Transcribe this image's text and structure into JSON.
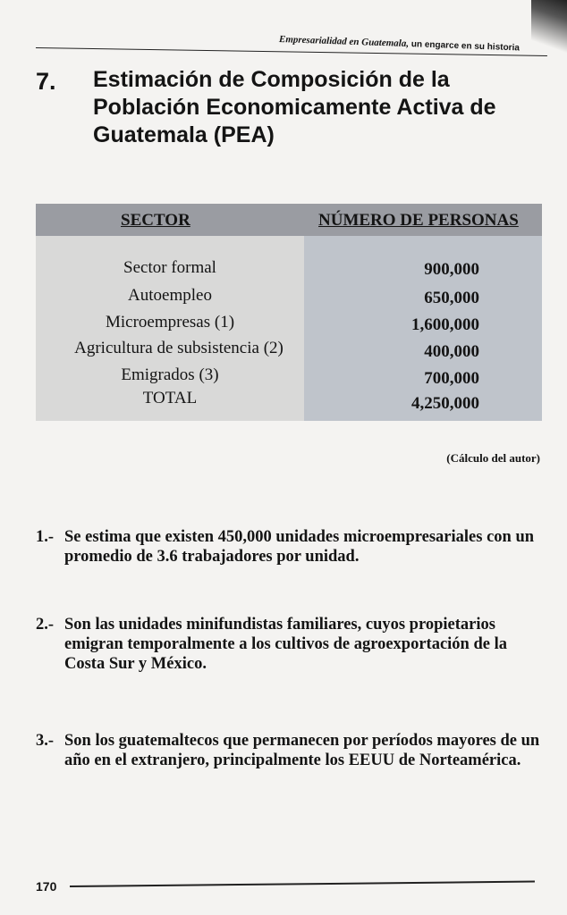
{
  "running_header": {
    "italic": "Empresarialidad en Guatemala,",
    "rest": "un engarce en su historia"
  },
  "section": {
    "number": "7.",
    "title": "Estimación de Composición de la Población Economicamente Activa de Guatemala (PEA)"
  },
  "table": {
    "headers": [
      "SECTOR",
      "NÚMERO DE PERSONAS"
    ],
    "rows": [
      {
        "sector": "Sector formal",
        "value": "900,000"
      },
      {
        "sector": "Autoempleo",
        "value": "650,000"
      },
      {
        "sector": "Microempresas (1)",
        "value": "1,600,000"
      },
      {
        "sector": "Agricultura de subsistencia (2)",
        "value": "400,000"
      },
      {
        "sector": "Emigrados (3)",
        "value": "700,000"
      },
      {
        "sector": "TOTAL",
        "value": "4,250,000"
      }
    ]
  },
  "source": "(Cálculo del autor)",
  "notes": [
    {
      "label": "1.-",
      "text": "Se estima que existen 450,000 unidades microempresariales con un promedio de 3.6 trabajadores por unidad."
    },
    {
      "label": "2.-",
      "text": "Son las unidades minifundistas familiares, cuyos propietarios emigran temporalmente a los cultivos de agroexportación de la Costa Sur y México."
    },
    {
      "label": "3.-",
      "text": "Son los guatemaltecos que permanecen por períodos mayores de un año en el extranjero, principalmente los EEUU de Norteamérica."
    }
  ],
  "page_number": "170"
}
